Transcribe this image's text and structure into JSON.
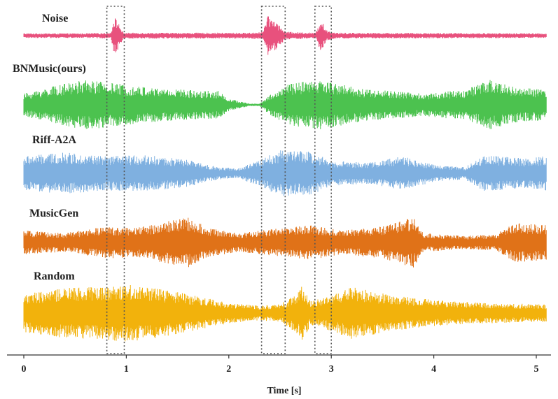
{
  "chart_data": {
    "type": "line",
    "xlabel": "Time [s]",
    "xlim": [
      0,
      5.1
    ],
    "xticks": [
      "0",
      "1",
      "2",
      "3",
      "4",
      "5"
    ],
    "grid": false,
    "series": [
      {
        "name": "Noise",
        "color": "#e8517d",
        "envelope": [
          [
            0.0,
            0.12
          ],
          [
            0.6,
            0.12
          ],
          [
            0.85,
            0.15
          ],
          [
            0.88,
            1.0
          ],
          [
            0.92,
            0.7
          ],
          [
            0.97,
            0.15
          ],
          [
            2.2,
            0.15
          ],
          [
            2.33,
            0.2
          ],
          [
            2.38,
            1.0
          ],
          [
            2.45,
            0.8
          ],
          [
            2.55,
            0.2
          ],
          [
            2.85,
            0.15
          ],
          [
            2.9,
            0.9
          ],
          [
            2.95,
            0.3
          ],
          [
            3.05,
            0.15
          ],
          [
            5.1,
            0.12
          ]
        ]
      },
      {
        "name": "BNMusic(ours)",
        "color": "#4cc24f",
        "envelope": [
          [
            0.0,
            0.45
          ],
          [
            0.3,
            0.75
          ],
          [
            0.6,
            1.0
          ],
          [
            0.9,
            0.85
          ],
          [
            1.2,
            0.7
          ],
          [
            1.6,
            0.6
          ],
          [
            1.9,
            0.55
          ],
          [
            2.0,
            0.25
          ],
          [
            2.2,
            0.05
          ],
          [
            2.3,
            0.05
          ],
          [
            2.4,
            0.4
          ],
          [
            2.6,
            0.85
          ],
          [
            2.9,
            1.0
          ],
          [
            3.3,
            0.65
          ],
          [
            3.6,
            0.55
          ],
          [
            3.9,
            0.45
          ],
          [
            4.3,
            0.6
          ],
          [
            4.55,
            1.0
          ],
          [
            4.8,
            0.7
          ],
          [
            5.1,
            0.6
          ]
        ]
      },
      {
        "name": "Riff-A2A",
        "color": "#7fb0e0",
        "envelope": [
          [
            0.0,
            0.7
          ],
          [
            0.4,
            0.85
          ],
          [
            0.8,
            0.7
          ],
          [
            1.2,
            0.75
          ],
          [
            1.6,
            0.55
          ],
          [
            1.9,
            0.25
          ],
          [
            2.1,
            0.2
          ],
          [
            2.3,
            0.55
          ],
          [
            2.5,
            0.95
          ],
          [
            2.8,
            0.9
          ],
          [
            3.0,
            0.5
          ],
          [
            3.4,
            0.45
          ],
          [
            3.7,
            0.7
          ],
          [
            4.0,
            0.35
          ],
          [
            4.3,
            0.25
          ],
          [
            4.5,
            0.75
          ],
          [
            4.9,
            0.6
          ],
          [
            5.1,
            0.7
          ]
        ]
      },
      {
        "name": "MusicGen",
        "color": "#e07218",
        "envelope": [
          [
            0.0,
            0.45
          ],
          [
            0.4,
            0.35
          ],
          [
            0.8,
            0.6
          ],
          [
            1.1,
            0.55
          ],
          [
            1.4,
            0.8
          ],
          [
            1.6,
            0.95
          ],
          [
            1.8,
            0.55
          ],
          [
            2.1,
            0.35
          ],
          [
            2.4,
            0.5
          ],
          [
            2.8,
            0.65
          ],
          [
            3.1,
            0.45
          ],
          [
            3.5,
            0.6
          ],
          [
            3.8,
            0.95
          ],
          [
            3.9,
            0.35
          ],
          [
            4.3,
            0.25
          ],
          [
            4.6,
            0.3
          ],
          [
            4.8,
            0.75
          ],
          [
            5.1,
            0.65
          ]
        ]
      },
      {
        "name": "Random",
        "color": "#f2b20c",
        "envelope": [
          [
            0.0,
            0.65
          ],
          [
            0.4,
            0.85
          ],
          [
            0.7,
            0.9
          ],
          [
            1.0,
            1.0
          ],
          [
            1.3,
            0.85
          ],
          [
            1.6,
            0.65
          ],
          [
            2.0,
            0.35
          ],
          [
            2.3,
            0.25
          ],
          [
            2.5,
            0.3
          ],
          [
            2.65,
            0.65
          ],
          [
            2.72,
            0.95
          ],
          [
            2.8,
            0.4
          ],
          [
            2.95,
            0.55
          ],
          [
            3.2,
            0.9
          ],
          [
            3.6,
            0.6
          ],
          [
            4.0,
            0.45
          ],
          [
            4.5,
            0.35
          ],
          [
            5.1,
            0.3
          ]
        ]
      }
    ],
    "highlight_ranges": [
      [
        0.81,
        0.98
      ],
      [
        2.32,
        2.55
      ],
      [
        2.84,
        3.0
      ]
    ]
  }
}
